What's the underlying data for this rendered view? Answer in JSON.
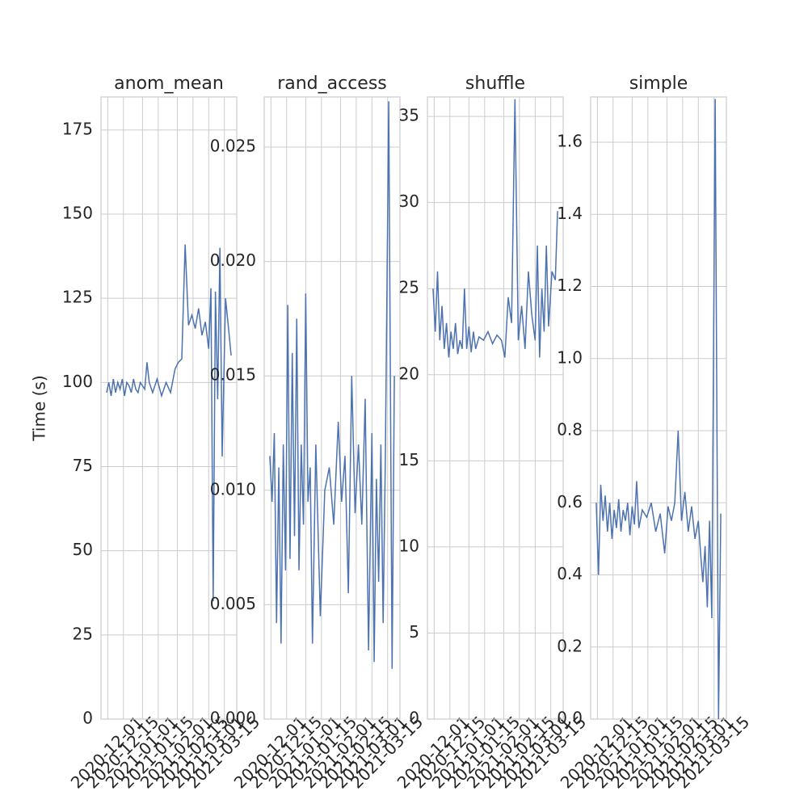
{
  "chart_data": [
    {
      "type": "line",
      "title": "anom_mean",
      "ylabel": "Time (s)",
      "color": "#4c72b0",
      "grid": true,
      "x": [
        "2020-11-30",
        "2020-12-02",
        "2020-12-04",
        "2020-12-06",
        "2020-12-08",
        "2020-12-10",
        "2020-12-12",
        "2020-12-14",
        "2020-12-16",
        "2020-12-18",
        "2020-12-20",
        "2020-12-22",
        "2020-12-24",
        "2020-12-26",
        "2020-12-28",
        "2020-12-30",
        "2021-01-01",
        "2021-01-03",
        "2021-01-05",
        "2021-01-07",
        "2021-01-10",
        "2021-01-14",
        "2021-01-18",
        "2021-01-22",
        "2021-01-26",
        "2021-01-30",
        "2021-02-02",
        "2021-02-05",
        "2021-02-08",
        "2021-02-11",
        "2021-02-14",
        "2021-02-17",
        "2021-02-20",
        "2021-02-23",
        "2021-02-26",
        "2021-03-01",
        "2021-03-03",
        "2021-03-05",
        "2021-03-07",
        "2021-03-09",
        "2021-03-11",
        "2021-03-13",
        "2021-03-16",
        "2021-03-19",
        "2021-03-21"
      ],
      "values": [
        97,
        100,
        96,
        101,
        97,
        100,
        98,
        101,
        96,
        100,
        99,
        97,
        101,
        98,
        97,
        100,
        99,
        98,
        106,
        100,
        97,
        101,
        96,
        100,
        97,
        104,
        106,
        107,
        141,
        117,
        120,
        116,
        122,
        114,
        118,
        110,
        128,
        35,
        127,
        95,
        140,
        78,
        125,
        115,
        108
      ],
      "xlim": [
        "2020-11-25",
        "2021-03-26"
      ],
      "xticks": [
        "2020-12-01",
        "2020-12-15",
        "2021-01-01",
        "2021-01-15",
        "2021-02-01",
        "2021-02-15",
        "2021-03-01",
        "2021-03-15"
      ],
      "ylim": [
        0,
        184.8
      ],
      "yticks": [
        0,
        25,
        50,
        75,
        100,
        125,
        150,
        175
      ]
    },
    {
      "type": "line",
      "title": "rand_access",
      "color": "#4c72b0",
      "grid": true,
      "x": [
        "2020-11-30",
        "2020-12-02",
        "2020-12-04",
        "2020-12-06",
        "2020-12-08",
        "2020-12-10",
        "2020-12-12",
        "2020-12-14",
        "2020-12-16",
        "2020-12-18",
        "2020-12-20",
        "2020-12-22",
        "2020-12-24",
        "2020-12-26",
        "2020-12-28",
        "2020-12-30",
        "2021-01-01",
        "2021-01-03",
        "2021-01-05",
        "2021-01-07",
        "2021-01-10",
        "2021-01-14",
        "2021-01-18",
        "2021-01-22",
        "2021-01-26",
        "2021-01-30",
        "2021-02-02",
        "2021-02-05",
        "2021-02-08",
        "2021-02-11",
        "2021-02-14",
        "2021-02-17",
        "2021-02-20",
        "2021-02-23",
        "2021-02-26",
        "2021-03-01",
        "2021-03-03",
        "2021-03-05",
        "2021-03-07",
        "2021-03-09",
        "2021-03-11",
        "2021-03-13",
        "2021-03-16",
        "2021-03-19",
        "2021-03-21"
      ],
      "values": [
        0.0115,
        0.0095,
        0.0125,
        0.0042,
        0.011,
        0.0033,
        0.012,
        0.0065,
        0.0181,
        0.007,
        0.016,
        0.008,
        0.0175,
        0.0065,
        0.012,
        0.0085,
        0.0186,
        0.0095,
        0.011,
        0.0033,
        0.012,
        0.0045,
        0.01,
        0.011,
        0.0085,
        0.013,
        0.0095,
        0.0115,
        0.0055,
        0.015,
        0.009,
        0.012,
        0.0085,
        0.014,
        0.003,
        0.0125,
        0.0025,
        0.0105,
        0.006,
        0.012,
        0.0042,
        0.0115,
        0.027,
        0.0022,
        0.015
      ],
      "xlim": [
        "2020-11-25",
        "2021-03-26"
      ],
      "xticks": [
        "2020-12-01",
        "2020-12-15",
        "2021-01-01",
        "2021-01-15",
        "2021-02-01",
        "2021-02-15",
        "2021-03-01",
        "2021-03-15"
      ],
      "ylim": [
        0,
        0.02719
      ],
      "yticks": [
        {
          "value": 0,
          "label": "0.000"
        },
        0.005,
        {
          "value": 0.01,
          "label": "0.010"
        },
        0.015,
        {
          "value": 0.02,
          "label": "0.020"
        },
        0.025
      ]
    },
    {
      "type": "line",
      "title": "shuffle",
      "color": "#4c72b0",
      "grid": true,
      "x": [
        "2020-11-30",
        "2020-12-02",
        "2020-12-04",
        "2020-12-06",
        "2020-12-08",
        "2020-12-10",
        "2020-12-12",
        "2020-12-14",
        "2020-12-16",
        "2020-12-18",
        "2020-12-20",
        "2020-12-22",
        "2020-12-24",
        "2020-12-26",
        "2020-12-28",
        "2020-12-30",
        "2021-01-01",
        "2021-01-03",
        "2021-01-05",
        "2021-01-07",
        "2021-01-10",
        "2021-01-14",
        "2021-01-18",
        "2021-01-22",
        "2021-01-26",
        "2021-01-30",
        "2021-02-02",
        "2021-02-05",
        "2021-02-08",
        "2021-02-11",
        "2021-02-14",
        "2021-02-17",
        "2021-02-20",
        "2021-02-23",
        "2021-02-26",
        "2021-03-01",
        "2021-03-03",
        "2021-03-05",
        "2021-03-07",
        "2021-03-09",
        "2021-03-11",
        "2021-03-13",
        "2021-03-16",
        "2021-03-19",
        "2021-03-21"
      ],
      "values": [
        25,
        22.5,
        26,
        22,
        24,
        21.5,
        23,
        21,
        22.5,
        21.5,
        23,
        21.2,
        22,
        21.5,
        25,
        21.5,
        22.8,
        21.3,
        22.5,
        21.5,
        22.2,
        22,
        22.5,
        21.8,
        22.3,
        22,
        21,
        24.5,
        23,
        36,
        22,
        24,
        21.5,
        26,
        23.5,
        22,
        27.5,
        21,
        25,
        22.5,
        27.5,
        22.8,
        26,
        25.5,
        29.5
      ],
      "xlim": [
        "2020-11-25",
        "2021-03-26"
      ],
      "xticks": [
        "2020-12-01",
        "2020-12-15",
        "2021-01-01",
        "2021-01-15",
        "2021-02-01",
        "2021-02-15",
        "2021-03-01",
        "2021-03-15"
      ],
      "ylim": [
        0,
        36.13
      ],
      "yticks": [
        0,
        5,
        10,
        15,
        20,
        25,
        30,
        35
      ]
    },
    {
      "type": "line",
      "title": "simple",
      "color": "#4c72b0",
      "grid": true,
      "x": [
        "2020-11-30",
        "2020-12-02",
        "2020-12-04",
        "2020-12-06",
        "2020-12-08",
        "2020-12-10",
        "2020-12-12",
        "2020-12-14",
        "2020-12-16",
        "2020-12-18",
        "2020-12-20",
        "2020-12-22",
        "2020-12-24",
        "2020-12-26",
        "2020-12-28",
        "2020-12-30",
        "2021-01-01",
        "2021-01-03",
        "2021-01-05",
        "2021-01-07",
        "2021-01-10",
        "2021-01-14",
        "2021-01-18",
        "2021-01-22",
        "2021-01-26",
        "2021-01-30",
        "2021-02-02",
        "2021-02-05",
        "2021-02-08",
        "2021-02-11",
        "2021-02-14",
        "2021-02-17",
        "2021-02-20",
        "2021-02-23",
        "2021-02-26",
        "2021-03-01",
        "2021-03-03",
        "2021-03-05",
        "2021-03-07",
        "2021-03-09",
        "2021-03-11",
        "2021-03-13",
        "2021-03-16",
        "2021-03-19",
        "2021-03-21"
      ],
      "values": [
        0.6,
        0.4,
        0.65,
        0.55,
        0.62,
        0.52,
        0.6,
        0.5,
        0.58,
        0.53,
        0.61,
        0.52,
        0.58,
        0.55,
        0.6,
        0.51,
        0.59,
        0.54,
        0.66,
        0.53,
        0.58,
        0.56,
        0.6,
        0.52,
        0.57,
        0.46,
        0.59,
        0.55,
        0.6,
        0.8,
        0.55,
        0.63,
        0.52,
        0.59,
        0.5,
        0.55,
        0.46,
        0.38,
        0.48,
        0.31,
        0.55,
        0.28,
        1.72,
        0,
        0.57
      ],
      "xlim": [
        "2020-11-25",
        "2021-03-26"
      ],
      "xticks": [
        "2020-12-01",
        "2020-12-15",
        "2021-01-01",
        "2021-01-15",
        "2021-02-01",
        "2021-02-15",
        "2021-03-01",
        "2021-03-15"
      ],
      "ylim": [
        0,
        1.7255
      ],
      "yticks": [
        {
          "value": 0,
          "label": "0.0"
        },
        0.2,
        0.4,
        0.6,
        0.8,
        {
          "value": 1,
          "label": "1.0"
        },
        1.2,
        1.4,
        1.6
      ]
    }
  ]
}
